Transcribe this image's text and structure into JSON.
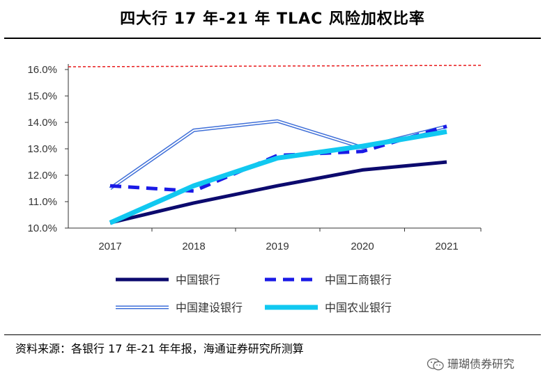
{
  "chart_data": {
    "type": "line",
    "title": "四大行 17 年-21 年 TLAC 风险加权比率",
    "categories": [
      "2017",
      "2018",
      "2019",
      "2020",
      "2021"
    ],
    "ylim": [
      10.0,
      16.0
    ],
    "yticks": [
      "10.0%",
      "11.0%",
      "12.0%",
      "13.0%",
      "14.0%",
      "15.0%",
      "16.0%"
    ],
    "ytick_values": [
      10,
      11,
      12,
      13,
      14,
      15,
      16
    ],
    "reference_line": {
      "value": 16.0,
      "color": "#e8191a"
    },
    "series": [
      {
        "name": "中国银行",
        "values": [
          10.2,
          10.95,
          11.6,
          12.2,
          12.5
        ],
        "color": "#0c0a6e",
        "style": "solid"
      },
      {
        "name": "中国工商银行",
        "values": [
          11.6,
          11.4,
          12.75,
          12.9,
          13.85
        ],
        "color": "#1a1ae6",
        "style": "dashed"
      },
      {
        "name": "中国建设银行",
        "values": [
          11.5,
          13.7,
          14.05,
          13.05,
          13.85
        ],
        "color": "#3f6fd8",
        "style": "double"
      },
      {
        "name": "中国农业银行",
        "values": [
          10.2,
          11.6,
          12.65,
          13.1,
          13.65
        ],
        "color": "#11c8f0",
        "style": "solid-thick"
      }
    ]
  },
  "footer": {
    "source": "资料来源：各银行 17 年-21 年年报，海通证券研究所测算",
    "watermark": "珊瑚债券研究"
  }
}
